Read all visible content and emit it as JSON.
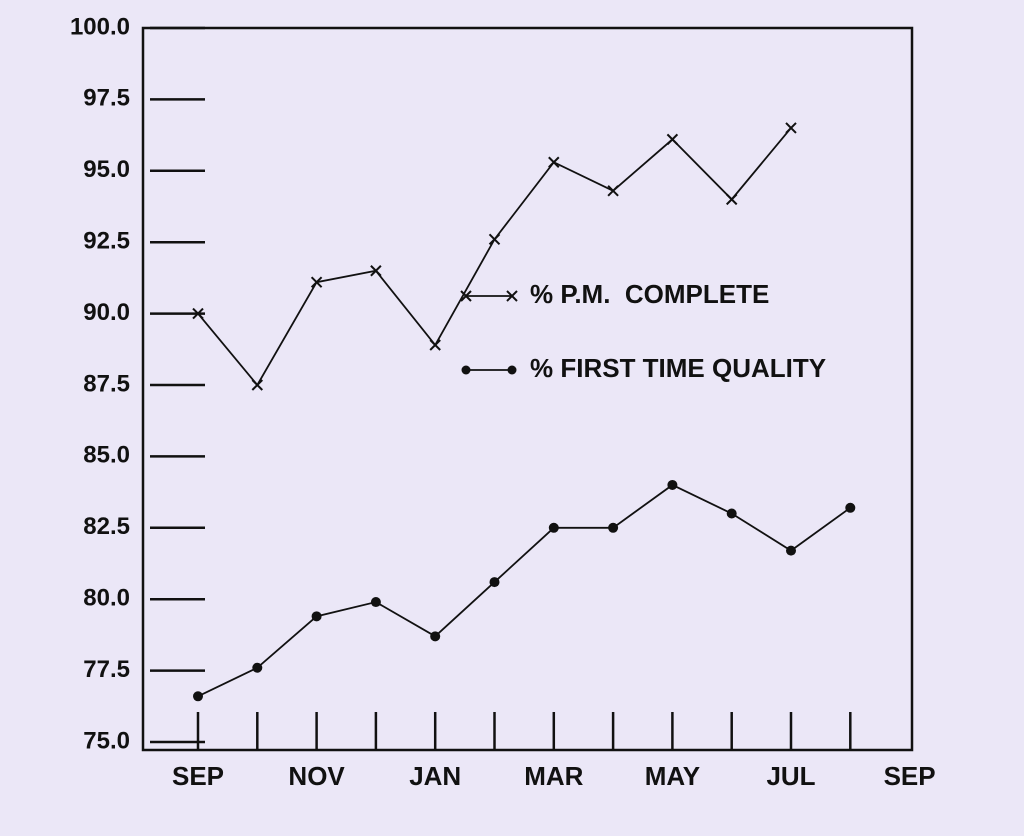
{
  "chart_data": {
    "type": "line",
    "categories": [
      "SEP",
      null,
      "NOV",
      null,
      "JAN",
      null,
      "MAR",
      null,
      "MAY",
      null,
      "JUL",
      null,
      "SEP"
    ],
    "series": [
      {
        "name": "% P.M.  COMPLETE",
        "color": "#111111",
        "marker": "x",
        "values": [
          90.0,
          87.5,
          91.1,
          91.5,
          88.9,
          92.6,
          95.3,
          94.3,
          96.1,
          94.0,
          96.5,
          null,
          null
        ]
      },
      {
        "name": "% FIRST TIME QUALITY",
        "color": "#111111",
        "marker": "o",
        "values": [
          76.6,
          77.6,
          79.4,
          79.9,
          78.7,
          80.6,
          82.5,
          82.5,
          84.0,
          83.0,
          81.7,
          83.2,
          null
        ]
      }
    ],
    "ylim": [
      75,
      100
    ],
    "yticks": [
      {
        "value": 75,
        "label": "75.0"
      },
      77.5,
      {
        "value": 80,
        "label": "80.0"
      },
      82.5,
      {
        "value": 85,
        "label": "85.0"
      },
      87.5,
      {
        "value": 90,
        "label": "90.0"
      },
      92.5,
      {
        "value": 95,
        "label": "95.0"
      },
      97.5,
      {
        "value": 100,
        "label": "100.0"
      }
    ]
  }
}
